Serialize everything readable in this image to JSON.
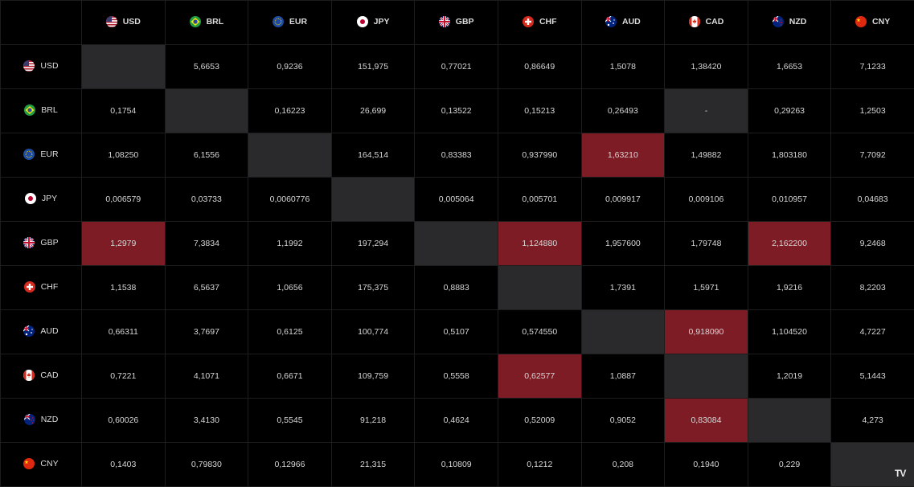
{
  "currencies": [
    "USD",
    "BRL",
    "EUR",
    "JPY",
    "GBP",
    "CHF",
    "AUD",
    "CAD",
    "NZD",
    "CNY"
  ],
  "flags": {
    "USD": "us-flag-icon",
    "BRL": "brazil-flag-icon",
    "EUR": "eu-flag-icon",
    "JPY": "japan-flag-icon",
    "GBP": "uk-flag-icon",
    "CHF": "switzerland-flag-icon",
    "AUD": "australia-flag-icon",
    "CAD": "canada-flag-icon",
    "NZD": "new-zealand-flag-icon",
    "CNY": "china-flag-icon"
  },
  "colors": {
    "highlight": "#7d1c25",
    "diagonal": "#2a2a2c",
    "background": "#000000"
  },
  "rows": [
    {
      "base": "USD",
      "values": [
        "",
        "5,6653",
        "0,9236",
        "151,975",
        "0,77021",
        "0,86649",
        "1,5078",
        "1,38420",
        "1,6653",
        "7,1233"
      ]
    },
    {
      "base": "BRL",
      "values": [
        "0,1754",
        "",
        "0,16223",
        "26,699",
        "0,13522",
        "0,15213",
        "0,26493",
        "-",
        "0,29263",
        "1,2503"
      ]
    },
    {
      "base": "EUR",
      "values": [
        "1,08250",
        "6,1556",
        "",
        "164,514",
        "0,83383",
        "0,937990",
        "1,63210",
        "1,49882",
        "1,803180",
        "7,7092"
      ]
    },
    {
      "base": "JPY",
      "values": [
        "0,006579",
        "0,03733",
        "0,0060776",
        "",
        "0,005064",
        "0,005701",
        "0,009917",
        "0,009106",
        "0,010957",
        "0,04683"
      ]
    },
    {
      "base": "GBP",
      "values": [
        "1,2979",
        "7,3834",
        "1,1992",
        "197,294",
        "",
        "1,124880",
        "1,957600",
        "1,79748",
        "2,162200",
        "9,2468"
      ]
    },
    {
      "base": "CHF",
      "values": [
        "1,1538",
        "6,5637",
        "1,0656",
        "175,375",
        "0,8883",
        "",
        "1,7391",
        "1,5971",
        "1,9216",
        "8,2203"
      ]
    },
    {
      "base": "AUD",
      "values": [
        "0,66311",
        "3,7697",
        "0,6125",
        "100,774",
        "0,5107",
        "0,574550",
        "",
        "0,918090",
        "1,104520",
        "4,7227"
      ]
    },
    {
      "base": "CAD",
      "values": [
        "0,7221",
        "4,1071",
        "0,6671",
        "109,759",
        "0,5558",
        "0,62577",
        "1,0887",
        "",
        "1,2019",
        "5,1443"
      ]
    },
    {
      "base": "NZD",
      "values": [
        "0,60026",
        "3,4130",
        "0,5545",
        "91,218",
        "0,4624",
        "0,52009",
        "0,9052",
        "0,83084",
        "",
        "4,273"
      ]
    },
    {
      "base": "CNY",
      "values": [
        "0,1403",
        "0,79830",
        "0,12966",
        "21,315",
        "0,10809",
        "0,1212",
        "0,208",
        "0,1940",
        "0,229",
        ""
      ]
    }
  ],
  "highlighted": [
    [
      2,
      6
    ],
    [
      4,
      0
    ],
    [
      4,
      5
    ],
    [
      4,
      8
    ],
    [
      6,
      7
    ],
    [
      7,
      5
    ],
    [
      8,
      7
    ]
  ],
  "na_cells": [
    [
      1,
      7
    ]
  ],
  "watermark": "TV"
}
